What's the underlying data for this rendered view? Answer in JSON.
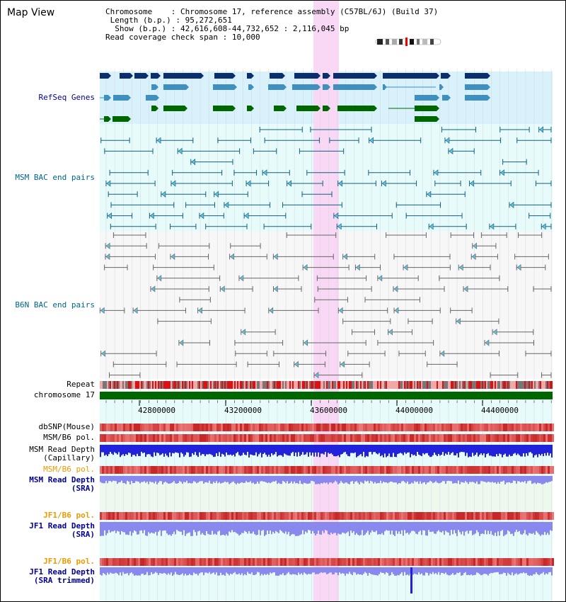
{
  "page_title": "Map View",
  "info": {
    "chromosome_key": "Chromosome",
    "chromosome_value": "Chromosome 17, reference assembly (C57BL/6J) (Build 37)",
    "length_key": "Length (b.p.)",
    "length_value": "95,272,651",
    "show_key": "Show (b.p.)",
    "show_value": "42,616,608-44,732,652 : 2,116,045 bp",
    "coverage_key": "Read coverage check span",
    "coverage_value": "10,000"
  },
  "tracks": {
    "refseq": "RefSeq Genes",
    "msm_bac": "MSM BAC end pairs",
    "b6n_bac": "B6N BAC end pairs",
    "repeat": "Repeat",
    "chromosome": "chromosome 17",
    "dbsnp": "dbSNP(Mouse)",
    "msm_pol1": "MSM/B6 pol.",
    "msm_depth_cap_1": "MSM Read Depth",
    "msm_depth_cap_2": "(Capillary)",
    "msm_pol2": "MSM/B6 pol.",
    "msm_depth_sra_1": "MSM Read Depth",
    "msm_depth_sra_2": "(SRA)",
    "jf1_pol1": "JF1/B6 pol.",
    "jf1_depth_sra_1": "JF1 Read Depth",
    "jf1_depth_sra_2": "(SRA)",
    "jf1_pol2": "JF1/B6 pol.",
    "jf1_depth_trim_1": "JF1 Read Depth",
    "jf1_depth_trim_2": "(SRA trimmed)"
  },
  "axis_ticks": [
    "42800000",
    "43200000",
    "43600000",
    "44000000",
    "44400000"
  ],
  "colors": {
    "label_blue": "#000099",
    "label_teal": "#006688",
    "label_orange": "#ee9900",
    "refseq_dark": "#0b2f6e",
    "refseq_mid": "#3f8fbf",
    "refseq_green": "#006600",
    "highlight": "#f9d8f5",
    "chromosome_bar": "#006600",
    "depth_blue": "#2222dd",
    "depth_light": "#8888ee"
  }
}
